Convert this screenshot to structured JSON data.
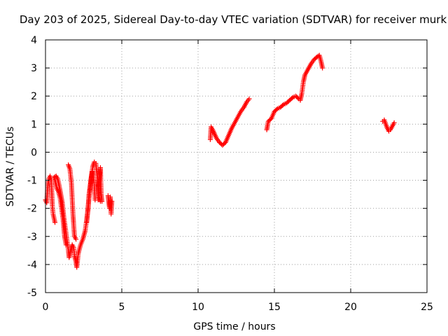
{
  "chart_data": {
    "type": "scatter",
    "title": "Day 203 of 2025, Sidereal Day-to-day VTEC variation (SDTVAR) for receiver murk",
    "xlabel": "GPS time / hours",
    "ylabel": "SDTVAR / TECUs",
    "xlim": [
      0,
      25
    ],
    "ylim": [
      -5,
      4
    ],
    "xticks": [
      0,
      5,
      10,
      15,
      20,
      25
    ],
    "yticks": [
      -5,
      -4,
      -3,
      -2,
      -1,
      0,
      1,
      2,
      3,
      4
    ],
    "grid": true,
    "marker": "+",
    "color": "#ff0000",
    "segments": [
      [
        [
          0.0,
          -1.7
        ],
        [
          0.08,
          -1.8
        ],
        [
          0.15,
          -1.2
        ],
        [
          0.22,
          -0.95
        ],
        [
          0.3,
          -0.85
        ],
        [
          0.38,
          -1.0
        ],
        [
          0.45,
          -1.9
        ],
        [
          0.5,
          -2.2
        ],
        [
          0.58,
          -2.4
        ],
        [
          0.62,
          -2.5
        ]
      ],
      [
        [
          0.55,
          -0.9
        ],
        [
          0.7,
          -0.85
        ],
        [
          0.8,
          -0.95
        ],
        [
          0.9,
          -1.2
        ],
        [
          1.0,
          -1.5
        ],
        [
          1.1,
          -1.8
        ],
        [
          1.2,
          -2.3
        ],
        [
          1.3,
          -2.7
        ],
        [
          1.4,
          -3.1
        ],
        [
          1.5,
          -3.5
        ],
        [
          1.55,
          -3.75
        ],
        [
          1.65,
          -3.5
        ],
        [
          1.75,
          -3.3
        ],
        [
          1.85,
          -3.4
        ],
        [
          1.9,
          -3.7
        ],
        [
          2.0,
          -3.9
        ],
        [
          2.05,
          -4.1
        ],
        [
          2.15,
          -3.6
        ],
        [
          2.3,
          -3.3
        ],
        [
          2.45,
          -3.1
        ],
        [
          2.6,
          -2.8
        ],
        [
          2.7,
          -2.4
        ],
        [
          2.8,
          -1.9
        ],
        [
          2.9,
          -1.4
        ],
        [
          3.0,
          -0.9
        ],
        [
          3.1,
          -0.5
        ],
        [
          3.2,
          -0.35
        ],
        [
          3.3,
          -0.4
        ],
        [
          3.4,
          -0.9
        ],
        [
          3.5,
          -1.6
        ],
        [
          3.6,
          -1.75
        ]
      ],
      [
        [
          1.5,
          -0.45
        ],
        [
          1.6,
          -0.6
        ],
        [
          1.7,
          -1.1
        ],
        [
          1.8,
          -2.2
        ],
        [
          1.9,
          -3.0
        ],
        [
          2.0,
          -3.1
        ]
      ],
      [
        [
          0.6,
          -0.95
        ],
        [
          0.75,
          -1.3
        ],
        [
          0.85,
          -1.4
        ],
        [
          0.95,
          -1.6
        ],
        [
          1.05,
          -2.0
        ],
        [
          1.15,
          -2.4
        ],
        [
          1.25,
          -3.0
        ],
        [
          1.35,
          -3.3
        ]
      ],
      [
        [
          2.7,
          -2.5
        ],
        [
          2.8,
          -2.0
        ],
        [
          2.85,
          -1.5
        ],
        [
          2.95,
          -1.1
        ],
        [
          3.05,
          -0.7
        ],
        [
          3.15,
          -0.9
        ],
        [
          3.2,
          -1.2
        ],
        [
          3.25,
          -1.7
        ]
      ],
      [
        [
          3.45,
          -1.7
        ],
        [
          3.5,
          -1.2
        ],
        [
          3.55,
          -0.8
        ],
        [
          3.6,
          -0.55
        ],
        [
          3.65,
          -1.5
        ],
        [
          3.7,
          -1.75
        ]
      ],
      [
        [
          4.1,
          -1.55
        ],
        [
          4.15,
          -1.8
        ],
        [
          4.2,
          -2.0
        ],
        [
          4.25,
          -1.6
        ],
        [
          4.3,
          -2.2
        ],
        [
          4.35,
          -1.75
        ]
      ],
      [
        [
          10.8,
          0.45
        ],
        [
          10.85,
          0.9
        ],
        [
          11.0,
          0.75
        ],
        [
          11.2,
          0.5
        ],
        [
          11.4,
          0.35
        ],
        [
          11.6,
          0.25
        ],
        [
          11.8,
          0.35
        ],
        [
          12.0,
          0.6
        ],
        [
          12.2,
          0.85
        ],
        [
          12.4,
          1.05
        ],
        [
          12.6,
          1.25
        ],
        [
          12.8,
          1.45
        ],
        [
          13.0,
          1.6
        ],
        [
          13.2,
          1.8
        ],
        [
          13.35,
          1.9
        ]
      ],
      [
        [
          14.5,
          0.8
        ],
        [
          14.6,
          1.1
        ],
        [
          14.8,
          1.2
        ],
        [
          15.0,
          1.45
        ],
        [
          15.2,
          1.55
        ],
        [
          15.4,
          1.6
        ],
        [
          15.6,
          1.7
        ],
        [
          15.8,
          1.75
        ],
        [
          16.0,
          1.85
        ],
        [
          16.2,
          1.95
        ],
        [
          16.4,
          2.0
        ],
        [
          16.6,
          1.9
        ],
        [
          16.7,
          1.85
        ],
        [
          16.8,
          2.1
        ],
        [
          16.9,
          2.5
        ],
        [
          17.0,
          2.75
        ],
        [
          17.2,
          2.95
        ],
        [
          17.4,
          3.15
        ],
        [
          17.6,
          3.3
        ],
        [
          17.8,
          3.4
        ],
        [
          17.95,
          3.45
        ],
        [
          18.05,
          3.25
        ],
        [
          18.15,
          3.0
        ]
      ],
      [
        [
          22.1,
          1.1
        ],
        [
          22.2,
          1.15
        ],
        [
          22.3,
          1.0
        ],
        [
          22.4,
          0.85
        ],
        [
          22.5,
          0.75
        ],
        [
          22.6,
          0.8
        ],
        [
          22.75,
          0.95
        ],
        [
          22.85,
          1.05
        ]
      ]
    ]
  }
}
